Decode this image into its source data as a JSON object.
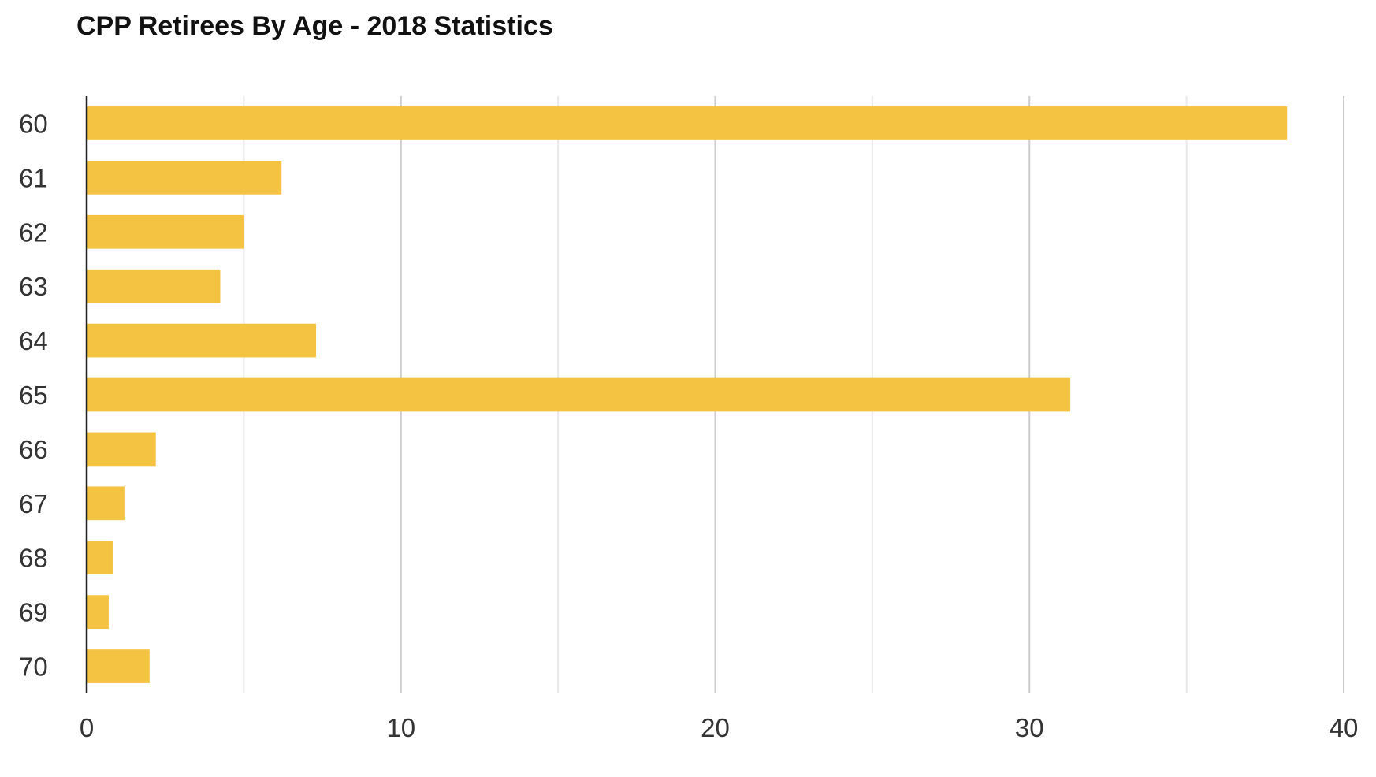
{
  "chart_data": {
    "type": "bar",
    "orientation": "horizontal",
    "title": "CPP Retirees By Age - 2018 Statistics",
    "xlabel": "",
    "ylabel": "",
    "categories": [
      "60",
      "61",
      "62",
      "63",
      "64",
      "65",
      "66",
      "67",
      "68",
      "69",
      "70"
    ],
    "values": [
      38.2,
      6.2,
      5.0,
      4.25,
      7.3,
      31.3,
      2.2,
      1.2,
      0.85,
      0.7,
      2.0
    ],
    "xlim": [
      0,
      40
    ],
    "xticks": [
      0,
      10,
      20,
      30,
      40
    ],
    "minor_grid": [
      5,
      15,
      25,
      35
    ],
    "grid": true,
    "legend": "none",
    "colors": {
      "bar": "#F5C342",
      "major_grid": "#CCCCCC",
      "minor_grid": "#E8E8E8",
      "axis": "#222222"
    }
  }
}
